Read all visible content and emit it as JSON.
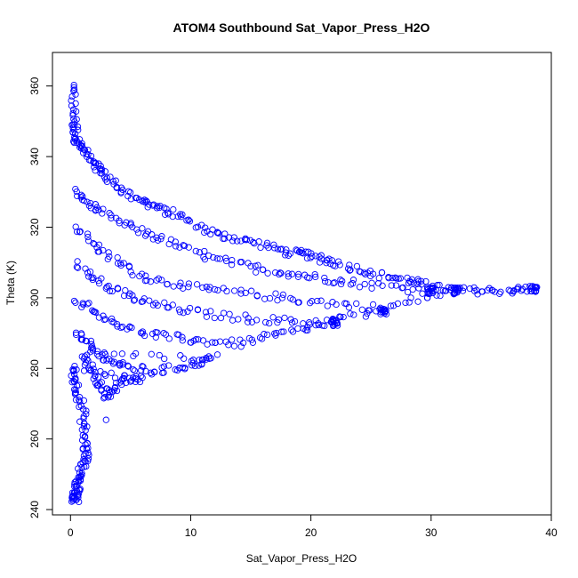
{
  "chart_data": {
    "type": "scatter",
    "title": "ATOM4 Southbound Sat_Vapor_Press_H2O",
    "xlabel": "Sat_Vapor_Press_H2O",
    "ylabel": "Theta (K)",
    "xlim": [
      -1.5,
      40
    ],
    "ylim": [
      238.5,
      369.5
    ],
    "xticks": [
      0,
      10,
      20,
      30,
      40
    ],
    "yticks": [
      240,
      260,
      280,
      300,
      320,
      340,
      360
    ],
    "xtick_labels": [
      "0",
      "10",
      "20",
      "30",
      "40"
    ],
    "ytick_labels": [
      "240",
      "260",
      "280",
      "300",
      "320",
      "340",
      "360"
    ],
    "grid": false,
    "legend": "none",
    "marker": "open-circle",
    "point_color": "#0000ff",
    "series": [
      {
        "trend_points": [
          [
            0.2,
            360
          ],
          [
            0.3,
            350
          ],
          [
            0.5,
            345
          ],
          [
            1.0,
            342
          ],
          [
            2.0,
            338
          ],
          [
            3.0,
            334
          ],
          [
            5.0,
            329
          ],
          [
            7.0,
            326
          ],
          [
            9.0,
            323
          ],
          [
            12.0,
            318
          ],
          [
            15.0,
            316
          ],
          [
            18.0,
            313
          ],
          [
            20.0,
            312
          ],
          [
            22.0,
            310
          ],
          [
            25.0,
            307
          ],
          [
            28.0,
            305
          ],
          [
            30.0,
            303
          ],
          [
            33.0,
            302
          ],
          [
            36.0,
            302
          ],
          [
            38.5,
            302.5
          ],
          [
            0.5,
            330
          ],
          [
            2.0,
            325
          ],
          [
            5.0,
            320
          ],
          [
            8.0,
            316
          ],
          [
            12.0,
            311
          ],
          [
            16.0,
            308
          ],
          [
            20.0,
            306
          ],
          [
            24.0,
            304
          ],
          [
            30.0,
            302
          ],
          [
            0.5,
            320
          ],
          [
            3.0,
            312
          ],
          [
            6.0,
            306
          ],
          [
            10.0,
            303
          ],
          [
            15.0,
            301
          ],
          [
            20.0,
            299
          ],
          [
            26.0,
            297
          ],
          [
            32.0,
            302
          ],
          [
            0.5,
            310
          ],
          [
            3.0,
            303
          ],
          [
            6.0,
            299
          ],
          [
            10.0,
            296
          ],
          [
            15.0,
            294
          ],
          [
            20.0,
            293
          ],
          [
            26.0,
            296
          ],
          [
            0.5,
            300
          ],
          [
            3.0,
            294
          ],
          [
            6.0,
            290
          ],
          [
            10.0,
            288
          ],
          [
            14.0,
            287
          ],
          [
            18.0,
            290
          ],
          [
            22.0,
            293
          ],
          [
            0.5,
            290
          ],
          [
            2.0,
            285
          ],
          [
            4.0,
            281
          ],
          [
            7.0,
            279
          ],
          [
            10.0,
            281
          ],
          [
            12.0,
            283
          ],
          [
            1.0,
            284
          ],
          [
            2.0,
            278
          ],
          [
            3.0,
            272
          ],
          [
            4.0,
            276
          ],
          [
            6.0,
            277
          ],
          [
            0.2,
            280
          ],
          [
            0.5,
            275
          ],
          [
            1.0,
            268
          ],
          [
            1.2,
            260
          ],
          [
            1.3,
            254
          ],
          [
            0.8,
            250
          ],
          [
            0.5,
            246
          ],
          [
            0.4,
            243
          ],
          [
            3.0,
            265
          ]
        ]
      }
    ]
  }
}
